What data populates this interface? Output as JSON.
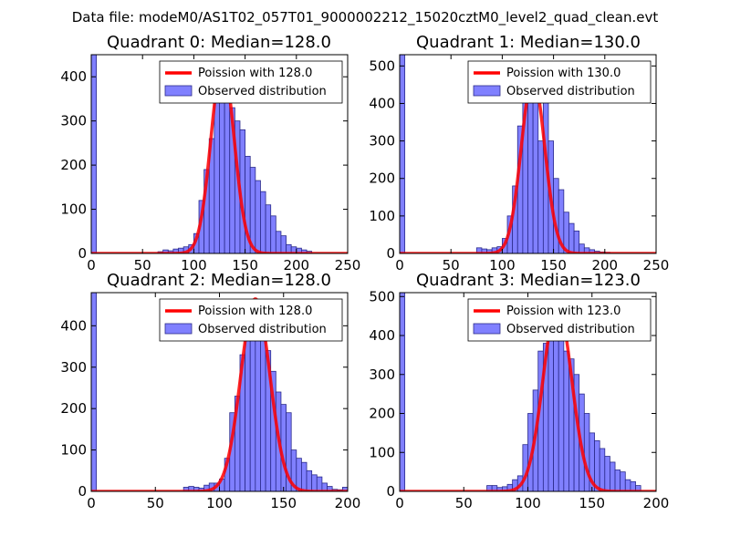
{
  "figure": {
    "suptitle": "Data file: modeM0/AS1T02_057T01_9000002212_15020cztM0_level2_quad_clean.evt"
  },
  "colors": {
    "hist_fill": "#8080ff",
    "hist_edge": "#2a2a8a",
    "poisson_line": "#ff0000",
    "axes": "#000000"
  },
  "chart_data": [
    {
      "type": "bar",
      "title": "Quadrant 0: Median=128.0",
      "xlim": [
        0,
        250
      ],
      "ylim": [
        0,
        450
      ],
      "xticks": [
        0,
        50,
        100,
        150,
        200,
        250
      ],
      "yticks": [
        0,
        100,
        200,
        300,
        400
      ],
      "legend": [
        "Poission with 128.0",
        "Observed distribution"
      ],
      "legend_position": "top-right",
      "bin_width": 5,
      "bins": [
        [
          0,
          455
        ],
        [
          65,
          4
        ],
        [
          70,
          8
        ],
        [
          75,
          6
        ],
        [
          80,
          10
        ],
        [
          85,
          12
        ],
        [
          90,
          15
        ],
        [
          95,
          20
        ],
        [
          100,
          45
        ],
        [
          105,
          120
        ],
        [
          110,
          190
        ],
        [
          115,
          260
        ],
        [
          120,
          370
        ],
        [
          125,
          420
        ],
        [
          130,
          380
        ],
        [
          135,
          330
        ],
        [
          140,
          300
        ],
        [
          145,
          280
        ],
        [
          150,
          220
        ],
        [
          155,
          195
        ],
        [
          160,
          165
        ],
        [
          165,
          140
        ],
        [
          170,
          110
        ],
        [
          175,
          85
        ],
        [
          180,
          50
        ],
        [
          185,
          40
        ],
        [
          190,
          20
        ],
        [
          195,
          15
        ],
        [
          200,
          12
        ],
        [
          205,
          8
        ],
        [
          210,
          5
        ]
      ],
      "poisson_mean": 128.0,
      "poisson_peak": 430,
      "poisson_range": [
        0,
        250
      ]
    },
    {
      "type": "bar",
      "title": "Quadrant 1: Median=130.0",
      "xlim": [
        0,
        250
      ],
      "ylim": [
        0,
        530
      ],
      "xticks": [
        0,
        50,
        100,
        150,
        200,
        250
      ],
      "yticks": [
        0,
        100,
        200,
        300,
        400,
        500
      ],
      "legend": [
        "Poission with 130.0",
        "Observed distribution"
      ],
      "legend_position": "top-right",
      "bin_width": 5,
      "bins": [
        [
          0,
          530
        ],
        [
          75,
          15
        ],
        [
          80,
          12
        ],
        [
          85,
          10
        ],
        [
          90,
          15
        ],
        [
          95,
          18
        ],
        [
          100,
          40
        ],
        [
          105,
          100
        ],
        [
          110,
          180
        ],
        [
          115,
          340
        ],
        [
          120,
          480
        ],
        [
          125,
          490
        ],
        [
          130,
          470
        ],
        [
          135,
          300
        ],
        [
          140,
          420
        ],
        [
          145,
          300
        ],
        [
          150,
          200
        ],
        [
          155,
          170
        ],
        [
          160,
          110
        ],
        [
          165,
          80
        ],
        [
          170,
          60
        ],
        [
          175,
          25
        ],
        [
          180,
          15
        ],
        [
          185,
          10
        ],
        [
          190,
          6
        ],
        [
          195,
          4
        ],
        [
          200,
          3
        ]
      ],
      "poisson_mean": 130.0,
      "poisson_peak": 470,
      "poisson_range": [
        0,
        250
      ]
    },
    {
      "type": "bar",
      "title": "Quadrant 2: Median=128.0",
      "xlim": [
        0,
        200
      ],
      "ylim": [
        0,
        480
      ],
      "xticks": [
        0,
        50,
        100,
        150,
        200
      ],
      "yticks": [
        0,
        100,
        200,
        300,
        400
      ],
      "legend": [
        "Poission with 128.0",
        "Observed distribution"
      ],
      "legend_position": "top-right",
      "bin_width": 4,
      "bins": [
        [
          0,
          480
        ],
        [
          72,
          10
        ],
        [
          76,
          12
        ],
        [
          80,
          10
        ],
        [
          84,
          8
        ],
        [
          88,
          15
        ],
        [
          92,
          20
        ],
        [
          96,
          20
        ],
        [
          100,
          30
        ],
        [
          104,
          80
        ],
        [
          108,
          190
        ],
        [
          112,
          230
        ],
        [
          116,
          330
        ],
        [
          120,
          370
        ],
        [
          124,
          440
        ],
        [
          128,
          420
        ],
        [
          132,
          390
        ],
        [
          136,
          340
        ],
        [
          140,
          290
        ],
        [
          144,
          240
        ],
        [
          148,
          210
        ],
        [
          152,
          190
        ],
        [
          156,
          100
        ],
        [
          160,
          80
        ],
        [
          164,
          70
        ],
        [
          168,
          50
        ],
        [
          172,
          40
        ],
        [
          176,
          35
        ],
        [
          180,
          20
        ],
        [
          184,
          12
        ],
        [
          188,
          5
        ],
        [
          192,
          4
        ],
        [
          196,
          10
        ]
      ],
      "poisson_mean": 128.0,
      "poisson_peak": 465,
      "poisson_range": [
        0,
        200
      ]
    },
    {
      "type": "bar",
      "title": "Quadrant 3: Median=123.0",
      "xlim": [
        0,
        200
      ],
      "ylim": [
        0,
        510
      ],
      "xticks": [
        0,
        50,
        100,
        150,
        200
      ],
      "yticks": [
        0,
        100,
        200,
        300,
        400,
        500
      ],
      "legend": [
        "Poission with 123.0",
        "Observed distribution"
      ],
      "legend_position": "top-right",
      "bin_width": 4,
      "bins": [
        [
          0,
          510
        ],
        [
          68,
          15
        ],
        [
          72,
          15
        ],
        [
          76,
          10
        ],
        [
          80,
          12
        ],
        [
          84,
          18
        ],
        [
          88,
          30
        ],
        [
          92,
          40
        ],
        [
          96,
          120
        ],
        [
          100,
          200
        ],
        [
          104,
          260
        ],
        [
          108,
          360
        ],
        [
          112,
          380
        ],
        [
          116,
          460
        ],
        [
          120,
          480
        ],
        [
          124,
          410
        ],
        [
          128,
          360
        ],
        [
          132,
          340
        ],
        [
          136,
          300
        ],
        [
          140,
          250
        ],
        [
          144,
          200
        ],
        [
          148,
          150
        ],
        [
          152,
          130
        ],
        [
          156,
          110
        ],
        [
          160,
          90
        ],
        [
          164,
          75
        ],
        [
          168,
          55
        ],
        [
          172,
          50
        ],
        [
          176,
          30
        ],
        [
          180,
          25
        ],
        [
          184,
          15
        ]
      ],
      "poisson_mean": 123.0,
      "poisson_peak": 480,
      "poisson_range": [
        0,
        200
      ]
    }
  ]
}
